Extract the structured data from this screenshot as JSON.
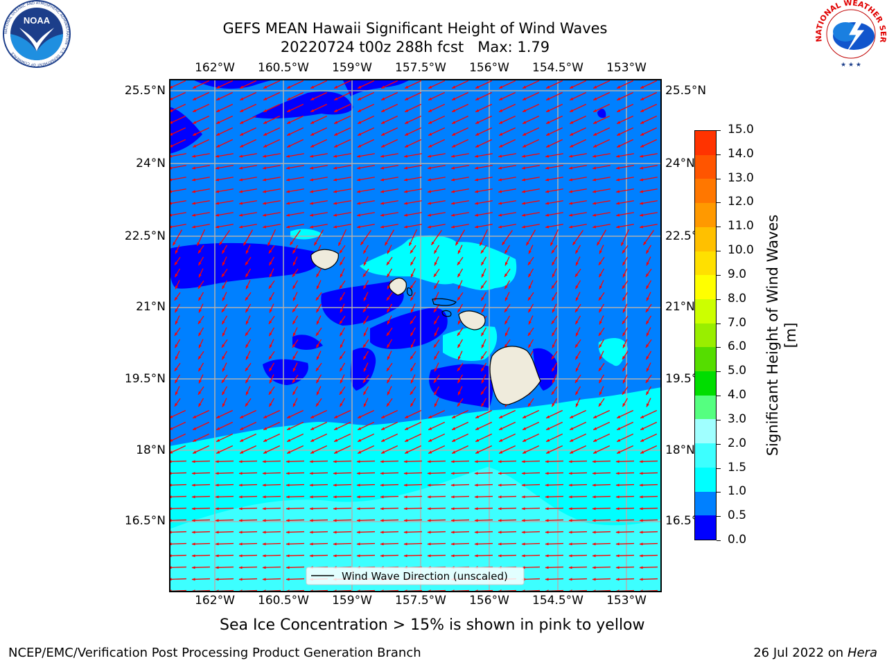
{
  "header": {
    "title_line1": "GEFS MEAN Hawaii Significant Height of Wind Waves",
    "title_line2": "20220724 t00z 288h fcst   Max: 1.79"
  },
  "logos": {
    "noaa_text": "NOAA",
    "noaa_ring": "NATIONAL OCEANIC AND ATMOSPHERIC ADMINISTRATION · U.S. DEPARTMENT OF COMMERCE",
    "nws_ring": "NATIONAL WEATHER SERVICE"
  },
  "map": {
    "lon_ticks": [
      "162°W",
      "160.5°W",
      "159°W",
      "157.5°W",
      "156°W",
      "154.5°W",
      "153°W"
    ],
    "lat_ticks": [
      "25.5°N",
      "24°N",
      "22.5°N",
      "21°N",
      "19.5°N",
      "18°N",
      "16.5°N"
    ],
    "legend_label": "Wind Wave Direction (unscaled)",
    "colors": {
      "level_0_0_5": "#0000ff",
      "level_0_5_1": "#0080ff",
      "level_1_1_5": "#00ffff",
      "level_1_5_2": "#3dffff",
      "land": "#efebdc",
      "arrow": "#ff0000",
      "grid": "#b0b0b0"
    }
  },
  "colorbar": {
    "label": "Significant Height of Wind Waves [m]",
    "ticks": [
      "0.0",
      "0.5",
      "1.0",
      "1.5",
      "2.0",
      "3.0",
      "4.0",
      "5.0",
      "6.0",
      "7.0",
      "8.0",
      "9.0",
      "10.0",
      "11.0",
      "12.0",
      "13.0",
      "14.0",
      "15.0"
    ],
    "colors": [
      "#0000ff",
      "#0080ff",
      "#00ffff",
      "#3dffff",
      "#a0ffff",
      "#55ff80",
      "#00dd00",
      "#55dd00",
      "#99ee00",
      "#ccff00",
      "#ffff00",
      "#ffe000",
      "#ffc000",
      "#ff9900",
      "#ff7700",
      "#ff5500",
      "#ff3300"
    ]
  },
  "footer": {
    "sea_ice_note": "Sea Ice Concentration > 15% is shown in pink to yellow",
    "credit": "NCEP/EMC/Verification Post Processing Product Generation Branch",
    "date_prefix": "26 Jul 2022 on ",
    "date_host": "Hera"
  }
}
